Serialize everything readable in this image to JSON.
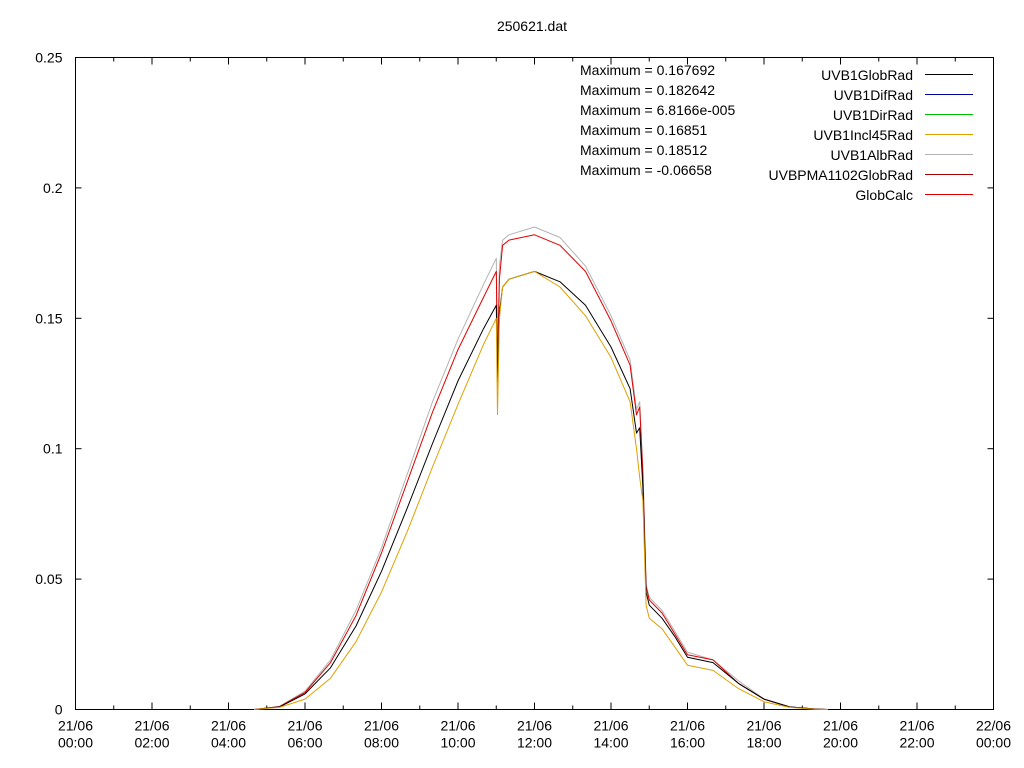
{
  "chart_data": {
    "type": "line",
    "title": "250621.dat",
    "xlabel": "",
    "ylabel": "",
    "x_range": [
      "2021-06-21T00:00",
      "2021-06-22T00:00"
    ],
    "ylim": [
      0,
      0.25
    ],
    "y_ticks": [
      {
        "value": 0,
        "label": "0"
      },
      {
        "value": 0.05,
        "label": "0.05"
      },
      {
        "value": 0.1,
        "label": "0.1"
      },
      {
        "value": 0.15,
        "label": "0.15"
      },
      {
        "value": 0.2,
        "label": "0.2"
      },
      {
        "value": 0.25,
        "label": "0.25"
      }
    ],
    "x_ticks": [
      {
        "value": "2021-06-21T00:00",
        "line1": "21/06",
        "line2": "00:00"
      },
      {
        "value": "2021-06-21T02:00",
        "line1": "21/06",
        "line2": "02:00"
      },
      {
        "value": "2021-06-21T04:00",
        "line1": "21/06",
        "line2": "04:00"
      },
      {
        "value": "2021-06-21T06:00",
        "line1": "21/06",
        "line2": "06:00"
      },
      {
        "value": "2021-06-21T08:00",
        "line1": "21/06",
        "line2": "08:00"
      },
      {
        "value": "2021-06-21T10:00",
        "line1": "21/06",
        "line2": "10:00"
      },
      {
        "value": "2021-06-21T12:00",
        "line1": "21/06",
        "line2": "12:00"
      },
      {
        "value": "2021-06-21T14:00",
        "line1": "21/06",
        "line2": "14:00"
      },
      {
        "value": "2021-06-21T16:00",
        "line1": "21/06",
        "line2": "16:00"
      },
      {
        "value": "2021-06-21T18:00",
        "line1": "21/06",
        "line2": "18:00"
      },
      {
        "value": "2021-06-21T20:00",
        "line1": "21/06",
        "line2": "20:00"
      },
      {
        "value": "2021-06-21T22:00",
        "line1": "21/06",
        "line2": "22:00"
      },
      {
        "value": "2021-06-22T00:00",
        "line1": "22/06",
        "line2": "00:00"
      }
    ],
    "grid": false,
    "legend_position": "top-right",
    "annotations": [
      "Maximum = 0.167692",
      "Maximum = 0.182642",
      "Maximum = 6.8166e-005",
      "Maximum = 0.16851",
      "Maximum = 0.18512",
      "Maximum = -0.06658"
    ],
    "series": [
      {
        "name": "UVB1GlobRad",
        "color": "#000000",
        "x": [
          "2021-06-21T04:40",
          "2021-06-21T05:20",
          "2021-06-21T06:00",
          "2021-06-21T06:40",
          "2021-06-21T07:20",
          "2021-06-21T08:00",
          "2021-06-21T08:40",
          "2021-06-21T09:20",
          "2021-06-21T10:00",
          "2021-06-21T10:40",
          "2021-06-21T11:00",
          "2021-06-21T11:02",
          "2021-06-21T11:05",
          "2021-06-21T11:10",
          "2021-06-21T11:20",
          "2021-06-21T12:00",
          "2021-06-21T12:40",
          "2021-06-21T13:20",
          "2021-06-21T14:00",
          "2021-06-21T14:30",
          "2021-06-21T14:40",
          "2021-06-21T14:45",
          "2021-06-21T14:50",
          "2021-06-21T14:55",
          "2021-06-21T15:00",
          "2021-06-21T15:20",
          "2021-06-21T15:40",
          "2021-06-21T16:00",
          "2021-06-21T16:40",
          "2021-06-21T17:20",
          "2021-06-21T18:00",
          "2021-06-21T18:40",
          "2021-06-21T19:20",
          "2021-06-21T19:40"
        ],
        "y": [
          0,
          0.001,
          0.006,
          0.016,
          0.032,
          0.053,
          0.077,
          0.102,
          0.126,
          0.146,
          0.155,
          0.125,
          0.152,
          0.162,
          0.165,
          0.168,
          0.164,
          0.155,
          0.139,
          0.123,
          0.106,
          0.108,
          0.085,
          0.045,
          0.04,
          0.035,
          0.028,
          0.02,
          0.018,
          0.01,
          0.004,
          0.001,
          0.0002,
          0
        ]
      },
      {
        "name": "UVB1DifRad",
        "color": "#0000a0",
        "x": [],
        "y": []
      },
      {
        "name": "UVB1DirRad",
        "color": "#00c000",
        "x": [],
        "y": []
      },
      {
        "name": "UVB1Incl45Rad",
        "color": "#e0a000",
        "x": [
          "2021-06-21T04:40",
          "2021-06-21T05:20",
          "2021-06-21T06:00",
          "2021-06-21T06:40",
          "2021-06-21T07:20",
          "2021-06-21T08:00",
          "2021-06-21T08:40",
          "2021-06-21T09:20",
          "2021-06-21T10:00",
          "2021-06-21T10:40",
          "2021-06-21T11:00",
          "2021-06-21T11:02",
          "2021-06-21T11:05",
          "2021-06-21T11:10",
          "2021-06-21T11:20",
          "2021-06-21T12:00",
          "2021-06-21T12:40",
          "2021-06-21T13:20",
          "2021-06-21T14:00",
          "2021-06-21T14:30",
          "2021-06-21T14:40",
          "2021-06-21T14:45",
          "2021-06-21T14:50",
          "2021-06-21T14:55",
          "2021-06-21T15:00",
          "2021-06-21T15:20",
          "2021-06-21T15:40",
          "2021-06-21T16:00",
          "2021-06-21T16:40",
          "2021-06-21T17:20",
          "2021-06-21T18:00",
          "2021-06-21T18:40",
          "2021-06-21T19:20",
          "2021-06-21T19:40"
        ],
        "y": [
          0,
          0.0008,
          0.004,
          0.012,
          0.026,
          0.045,
          0.068,
          0.093,
          0.117,
          0.14,
          0.15,
          0.113,
          0.15,
          0.162,
          0.165,
          0.168,
          0.162,
          0.151,
          0.135,
          0.118,
          0.1,
          0.089,
          0.08,
          0.04,
          0.035,
          0.031,
          0.024,
          0.017,
          0.015,
          0.008,
          0.003,
          0.0008,
          0.0001,
          0
        ]
      },
      {
        "name": "UVB1AlbRad",
        "color": "#b4b4b4",
        "x": [
          "2021-06-21T04:40",
          "2021-06-21T05:20",
          "2021-06-21T06:00",
          "2021-06-21T06:40",
          "2021-06-21T07:20",
          "2021-06-21T08:00",
          "2021-06-21T08:40",
          "2021-06-21T09:20",
          "2021-06-21T10:00",
          "2021-06-21T10:40",
          "2021-06-21T11:00",
          "2021-06-21T11:02",
          "2021-06-21T11:05",
          "2021-06-21T11:10",
          "2021-06-21T11:20",
          "2021-06-21T12:00",
          "2021-06-21T12:40",
          "2021-06-21T13:20",
          "2021-06-21T14:00",
          "2021-06-21T14:30",
          "2021-06-21T14:40",
          "2021-06-21T14:45",
          "2021-06-21T14:50",
          "2021-06-21T14:55",
          "2021-06-21T15:00",
          "2021-06-21T15:20",
          "2021-06-21T15:40",
          "2021-06-21T16:00",
          "2021-06-21T16:40",
          "2021-06-21T17:20",
          "2021-06-21T18:00",
          "2021-06-21T18:40",
          "2021-06-21T19:20",
          "2021-06-21T19:40"
        ],
        "y": [
          0,
          0.0012,
          0.007,
          0.019,
          0.038,
          0.062,
          0.09,
          0.118,
          0.142,
          0.163,
          0.173,
          0.135,
          0.17,
          0.18,
          0.182,
          0.185,
          0.181,
          0.17,
          0.151,
          0.134,
          0.115,
          0.118,
          0.092,
          0.048,
          0.043,
          0.038,
          0.03,
          0.022,
          0.019,
          0.011,
          0.004,
          0.001,
          0.0002,
          0
        ]
      },
      {
        "name": "UVBPMA1102GlobRad",
        "color": "#a00000",
        "x": [],
        "y": []
      },
      {
        "name": "GlobCalc",
        "color": "#e00000",
        "x": [
          "2021-06-21T04:40",
          "2021-06-21T05:20",
          "2021-06-21T06:00",
          "2021-06-21T06:40",
          "2021-06-21T07:20",
          "2021-06-21T08:00",
          "2021-06-21T08:40",
          "2021-06-21T09:20",
          "2021-06-21T10:00",
          "2021-06-21T10:40",
          "2021-06-21T11:00",
          "2021-06-21T11:02",
          "2021-06-21T11:05",
          "2021-06-21T11:10",
          "2021-06-21T11:20",
          "2021-06-21T12:00",
          "2021-06-21T12:40",
          "2021-06-21T13:20",
          "2021-06-21T14:00",
          "2021-06-21T14:30",
          "2021-06-21T14:40",
          "2021-06-21T14:45",
          "2021-06-21T14:50",
          "2021-06-21T14:55",
          "2021-06-21T15:00",
          "2021-06-21T15:20",
          "2021-06-21T15:40",
          "2021-06-21T16:00",
          "2021-06-21T16:40",
          "2021-06-21T17:20",
          "2021-06-21T18:00",
          "2021-06-21T18:40",
          "2021-06-21T19:20",
          "2021-06-21T19:40"
        ],
        "y": [
          0,
          0.0011,
          0.0065,
          0.018,
          0.036,
          0.06,
          0.087,
          0.114,
          0.138,
          0.158,
          0.168,
          0.13,
          0.165,
          0.178,
          0.18,
          0.182,
          0.178,
          0.168,
          0.149,
          0.132,
          0.113,
          0.116,
          0.09,
          0.047,
          0.042,
          0.037,
          0.029,
          0.021,
          0.019,
          0.01,
          0.004,
          0.001,
          0.0002,
          0
        ]
      }
    ]
  }
}
